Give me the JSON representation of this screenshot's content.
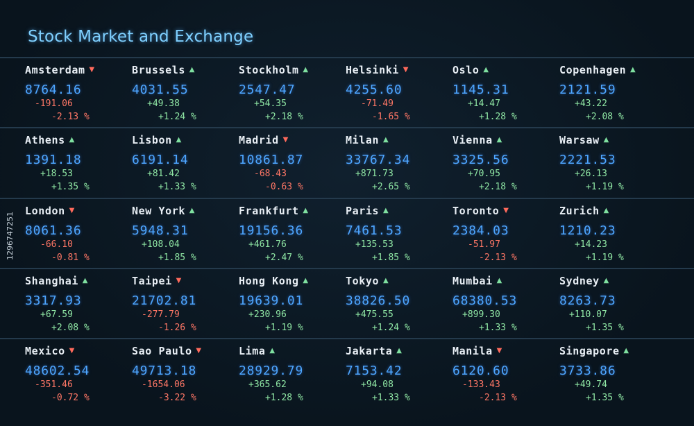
{
  "title": "Stock Market and Exchange",
  "watermark": "1296747251",
  "colors": {
    "background": "#0b1722",
    "price": "#4ea6ff",
    "up": "#8fe6a4",
    "down": "#ff7766",
    "title": "#7fd0ff"
  },
  "rows": [
    [
      {
        "city": "Amsterdam",
        "dir": "down",
        "price": "8764.16",
        "change": "-191.06",
        "percent": "-2.13 %"
      },
      {
        "city": "Brussels",
        "dir": "up",
        "price": "4031.55",
        "change": "+49.38",
        "percent": "+1.24 %"
      },
      {
        "city": "Stockholm",
        "dir": "up",
        "price": "2547.47",
        "change": "+54.35",
        "percent": "+2.18 %"
      },
      {
        "city": "Helsinki",
        "dir": "down",
        "price": "4255.60",
        "change": "-71.49",
        "percent": "-1.65 %"
      },
      {
        "city": "Oslo",
        "dir": "up",
        "price": "1145.31",
        "change": "+14.47",
        "percent": "+1.28 %"
      },
      {
        "city": "Copenhagen",
        "dir": "up",
        "price": "2121.59",
        "change": "+43.22",
        "percent": "+2.08 %"
      }
    ],
    [
      {
        "city": "Athens",
        "dir": "up",
        "price": "1391.18",
        "change": "+18.53",
        "percent": "+1.35 %"
      },
      {
        "city": "Lisbon",
        "dir": "up",
        "price": "6191.14",
        "change": "+81.42",
        "percent": "+1.33 %"
      },
      {
        "city": "Madrid",
        "dir": "down",
        "price": "10861.87",
        "change": "-68.43",
        "percent": "-0.63 %"
      },
      {
        "city": "Milan",
        "dir": "up",
        "price": "33767.34",
        "change": "+871.73",
        "percent": "+2.65 %"
      },
      {
        "city": "Vienna",
        "dir": "up",
        "price": "3325.56",
        "change": "+70.95",
        "percent": "+2.18 %"
      },
      {
        "city": "Warsaw",
        "dir": "up",
        "price": "2221.53",
        "change": "+26.13",
        "percent": "+1.19 %"
      }
    ],
    [
      {
        "city": "London",
        "dir": "down",
        "price": "8061.36",
        "change": "-66.10",
        "percent": "-0.81 %"
      },
      {
        "city": "New York",
        "dir": "up",
        "price": "5948.31",
        "change": "+108.04",
        "percent": "+1.85 %"
      },
      {
        "city": "Frankfurt",
        "dir": "up",
        "price": "19156.36",
        "change": "+461.76",
        "percent": "+2.47 %"
      },
      {
        "city": "Paris",
        "dir": "up",
        "price": "7461.53",
        "change": "+135.53",
        "percent": "+1.85 %"
      },
      {
        "city": "Toronto",
        "dir": "down",
        "price": "2384.03",
        "change": "-51.97",
        "percent": "-2.13 %"
      },
      {
        "city": "Zurich",
        "dir": "up",
        "price": "1210.23",
        "change": "+14.23",
        "percent": "+1.19 %"
      }
    ],
    [
      {
        "city": "Shanghai",
        "dir": "up",
        "price": "3317.93",
        "change": "+67.59",
        "percent": "+2.08 %"
      },
      {
        "city": "Taipei",
        "dir": "down",
        "price": "21702.81",
        "change": "-277.79",
        "percent": "-1.26 %"
      },
      {
        "city": "Hong Kong",
        "dir": "up",
        "price": "19639.01",
        "change": "+230.96",
        "percent": "+1.19 %"
      },
      {
        "city": "Tokyo",
        "dir": "up",
        "price": "38826.50",
        "change": "+475.55",
        "percent": "+1.24 %"
      },
      {
        "city": "Mumbai",
        "dir": "up",
        "price": "68380.53",
        "change": "+899.30",
        "percent": "+1.33 %"
      },
      {
        "city": "Sydney",
        "dir": "up",
        "price": "8263.73",
        "change": "+110.07",
        "percent": "+1.35 %"
      }
    ],
    [
      {
        "city": "Mexico",
        "dir": "down",
        "price": "48602.54",
        "change": "-351.46",
        "percent": "-0.72 %"
      },
      {
        "city": "Sao Paulo",
        "dir": "down",
        "price": "49713.18",
        "change": "-1654.06",
        "percent": "-3.22 %"
      },
      {
        "city": "Lima",
        "dir": "up",
        "price": "28929.79",
        "change": "+365.62",
        "percent": "+1.28 %"
      },
      {
        "city": "Jakarta",
        "dir": "up",
        "price": "7153.42",
        "change": "+94.08",
        "percent": "+1.33 %"
      },
      {
        "city": "Manila",
        "dir": "down",
        "price": "6120.60",
        "change": "-133.43",
        "percent": "-2.13 %"
      },
      {
        "city": "Singapore",
        "dir": "up",
        "price": "3733.86",
        "change": "+49.74",
        "percent": "+1.35 %"
      }
    ]
  ]
}
